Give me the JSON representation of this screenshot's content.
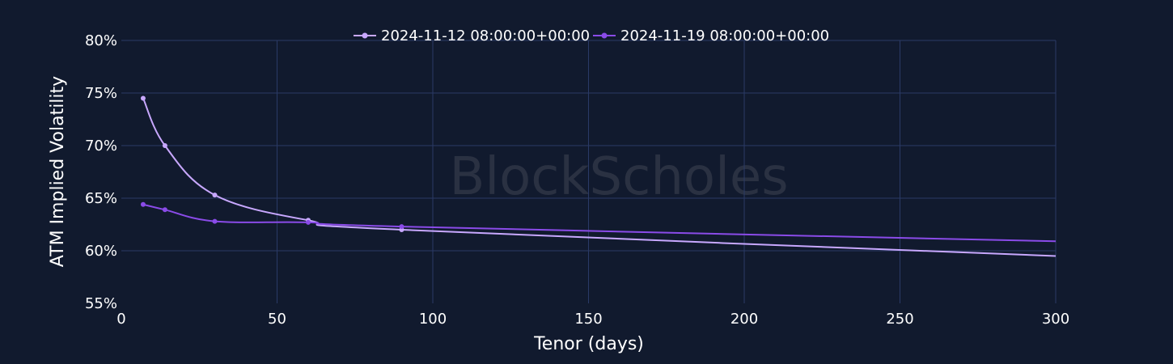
{
  "watermark": "BlockScholes",
  "chart_data": {
    "type": "line",
    "xlabel": "Tenor (days)",
    "ylabel": "ATM Implied Volatility",
    "xlim": [
      0,
      300
    ],
    "ylim": [
      55,
      80
    ],
    "x_ticks": [
      "0",
      "50",
      "100",
      "150",
      "200",
      "250",
      "300"
    ],
    "y_ticks": [
      "55%",
      "60%",
      "65%",
      "70%",
      "75%",
      "80%"
    ],
    "grid": true,
    "legend_position": "top-center",
    "colors": {
      "background": "#111a2e",
      "grid": "#2a3a66"
    },
    "series": [
      {
        "name": "2024-11-12 08:00:00+00:00",
        "color": "#c8a8ff",
        "points": [
          [
            7,
            74.5
          ],
          [
            14,
            70.0
          ],
          [
            30,
            65.3
          ],
          [
            60,
            62.9
          ],
          [
            90,
            62.0
          ],
          [
            300,
            59.5
          ]
        ],
        "markers": [
          [
            7,
            74.5
          ],
          [
            14,
            70.0
          ],
          [
            30,
            65.3
          ],
          [
            60,
            62.9
          ],
          [
            90,
            62.0
          ]
        ]
      },
      {
        "name": "2024-11-19 08:00:00+00:00",
        "color": "#8a4be8",
        "points": [
          [
            7,
            64.4
          ],
          [
            14,
            63.9
          ],
          [
            30,
            62.8
          ],
          [
            60,
            62.7
          ],
          [
            90,
            62.3
          ],
          [
            300,
            60.9
          ]
        ],
        "markers": [
          [
            7,
            64.4
          ],
          [
            14,
            63.9
          ],
          [
            30,
            62.8
          ],
          [
            60,
            62.7
          ],
          [
            90,
            62.3
          ]
        ]
      }
    ]
  }
}
